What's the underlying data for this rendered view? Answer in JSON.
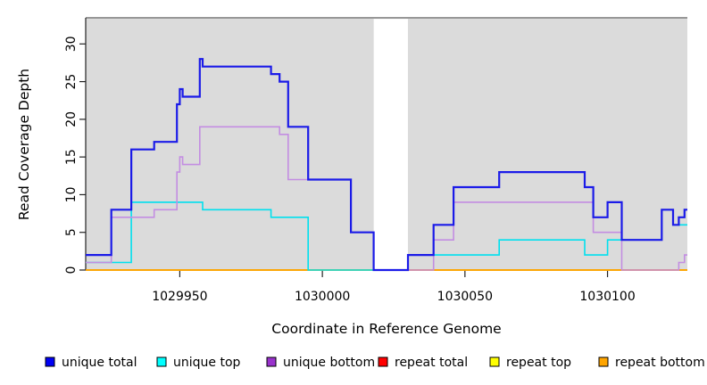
{
  "chart_data": {
    "type": "line",
    "subtype": "step-coverage-plot",
    "title": "",
    "xlabel": "Coordinate in Reference Genome",
    "ylabel": "Read Coverage Depth",
    "xlim": [
      1029917,
      1030128
    ],
    "ylim": [
      0,
      33.4
    ],
    "x_ticks": [
      1029950,
      1030000,
      1030050,
      1030100
    ],
    "x_tick_labels": [
      "1029950",
      "1030000",
      "1030050",
      "1030100"
    ],
    "y_ticks": [
      0,
      5,
      10,
      15,
      20,
      25,
      30
    ],
    "y_tick_labels": [
      "0",
      "5",
      "10",
      "15",
      "20",
      "25",
      "30"
    ],
    "grid": "off",
    "plot_background_color": "#DBDBDB",
    "masked_region": {
      "start": 1030018,
      "end": 1030030,
      "fill": "#FFFFFF"
    },
    "legend_position": "bottom",
    "series": [
      {
        "name": "unique total",
        "line_color": "#1B1BE8",
        "swatch_color": "#0000F5",
        "steps": [
          [
            1029917,
            2
          ],
          [
            1029926,
            8
          ],
          [
            1029933,
            16
          ],
          [
            1029941,
            17
          ],
          [
            1029949,
            22
          ],
          [
            1029950,
            24
          ],
          [
            1029951,
            23
          ],
          [
            1029957,
            28
          ],
          [
            1029958,
            27
          ],
          [
            1029982,
            26
          ],
          [
            1029985,
            25
          ],
          [
            1029988,
            19
          ],
          [
            1029995,
            12
          ],
          [
            1030010,
            5
          ],
          [
            1030018,
            0
          ],
          [
            1030030,
            2
          ],
          [
            1030039,
            6
          ],
          [
            1030046,
            11
          ],
          [
            1030062,
            13
          ],
          [
            1030092,
            11
          ],
          [
            1030095,
            7
          ],
          [
            1030100,
            9
          ],
          [
            1030105,
            4
          ],
          [
            1030119,
            8
          ],
          [
            1030123,
            6
          ],
          [
            1030125,
            7
          ],
          [
            1030127,
            8
          ],
          [
            1030128,
            8
          ]
        ]
      },
      {
        "name": "unique top",
        "line_color": "#00E0EE",
        "swatch_color": "#00FFFF",
        "steps": [
          [
            1029917,
            1
          ],
          [
            1029933,
            9
          ],
          [
            1029958,
            8
          ],
          [
            1029982,
            7
          ],
          [
            1029995,
            0
          ],
          [
            1030030,
            2
          ],
          [
            1030062,
            4
          ],
          [
            1030092,
            2
          ],
          [
            1030100,
            4
          ],
          [
            1030119,
            8
          ],
          [
            1030123,
            6
          ],
          [
            1030128,
            6
          ]
        ]
      },
      {
        "name": "unique bottom",
        "line_color": "#C38DE2",
        "swatch_color": "#9932CC",
        "steps": [
          [
            1029917,
            1
          ],
          [
            1029926,
            7
          ],
          [
            1029941,
            8
          ],
          [
            1029949,
            13
          ],
          [
            1029950,
            15
          ],
          [
            1029951,
            14
          ],
          [
            1029957,
            19
          ],
          [
            1029985,
            18
          ],
          [
            1029988,
            12
          ],
          [
            1030010,
            5
          ],
          [
            1030018,
            0
          ],
          [
            1030039,
            4
          ],
          [
            1030046,
            9
          ],
          [
            1030095,
            5
          ],
          [
            1030105,
            0
          ],
          [
            1030125,
            1
          ],
          [
            1030127,
            2
          ],
          [
            1030128,
            2
          ]
        ]
      },
      {
        "name": "repeat total",
        "line_color": "#E60000",
        "swatch_color": "#FF0000",
        "steps": [
          [
            1029917,
            0
          ],
          [
            1030128,
            0
          ]
        ]
      },
      {
        "name": "repeat top",
        "line_color": "#FFFF00",
        "swatch_color": "#FFFF00",
        "steps": [
          [
            1029917,
            0
          ],
          [
            1030128,
            0
          ]
        ]
      },
      {
        "name": "repeat bottom",
        "line_color": "#FFA500",
        "swatch_color": "#FFA500",
        "steps": [
          [
            1029917,
            0
          ],
          [
            1030128,
            0
          ]
        ]
      }
    ]
  }
}
